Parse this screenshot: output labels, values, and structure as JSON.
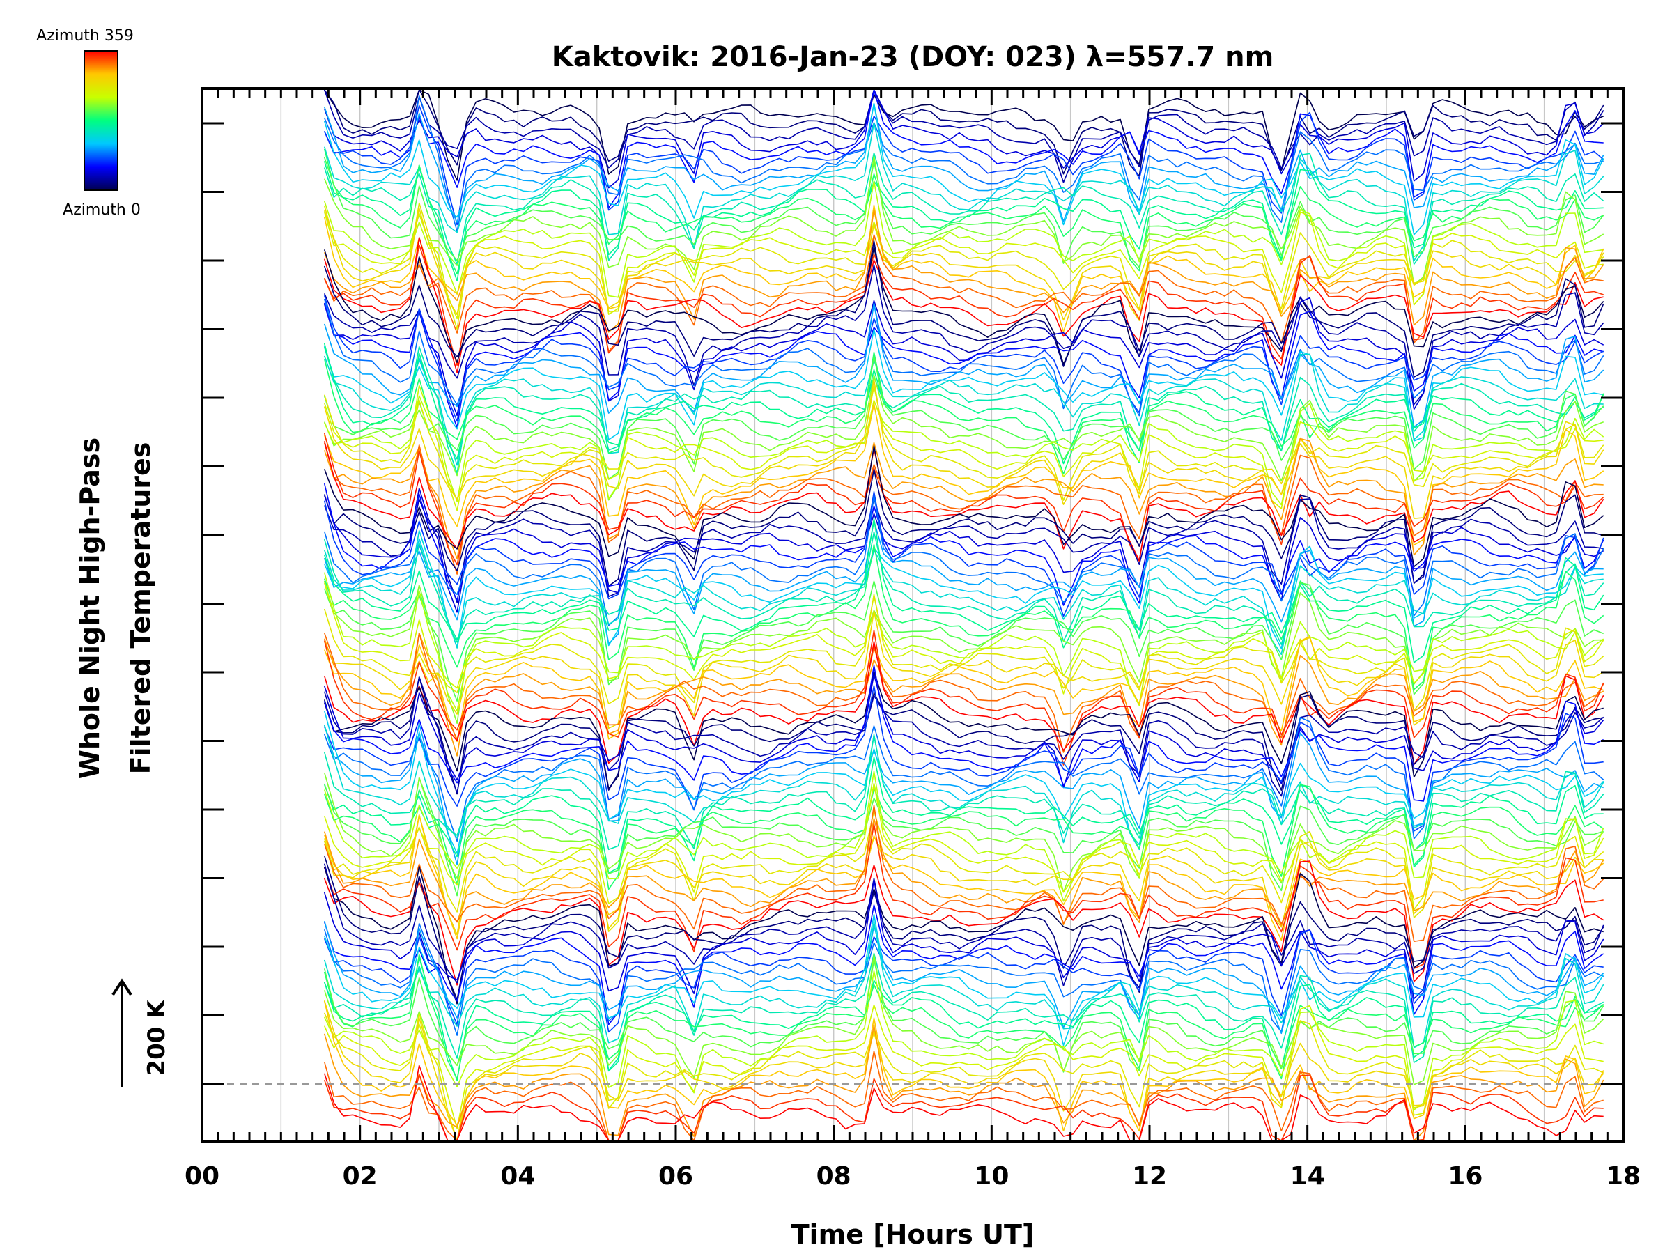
{
  "chart_data": {
    "type": "line",
    "title": "Kaktovik: 2016-Jan-23 (DOY: 023) λ=557.7 nm",
    "xlabel": "Time [Hours UT]",
    "ylabel_line1": "Whole Night High-Pass",
    "ylabel_line2": "Filtered Temperatures",
    "xlim": [
      0,
      18
    ],
    "xtick_labels": [
      "00",
      "02",
      "04",
      "06",
      "08",
      "10",
      "12",
      "14",
      "16",
      "18"
    ],
    "xtick_values": [
      0,
      2,
      4,
      6,
      8,
      10,
      12,
      14,
      16,
      18
    ],
    "data_start_hour": 1.55,
    "data_end_hour": 17.85,
    "scale_bar_label": "200 K",
    "colorbar": {
      "top_label": "Azimuth 359",
      "bottom_label": "Azimuth 0",
      "colormap": [
        "#000050",
        "#0000ff",
        "#00c8ff",
        "#00ff80",
        "#c8ff00",
        "#ffc800",
        "#ff0000"
      ]
    },
    "event_spikes_hours": [
      1.6,
      2.8,
      3.2,
      5.2,
      6.2,
      8.5,
      10.9,
      11.8,
      13.6,
      14.0,
      15.4,
      17.3,
      17.85
    ],
    "baseline_dashed": true,
    "series_count": 120,
    "series_description": "Offset high-pass filtered temperature traces, one per azimuth, colored by azimuth"
  },
  "colors": {
    "background": "#ffffff",
    "axis": "#000000",
    "grid": "#c8c8c8",
    "baseline": "#999999"
  }
}
